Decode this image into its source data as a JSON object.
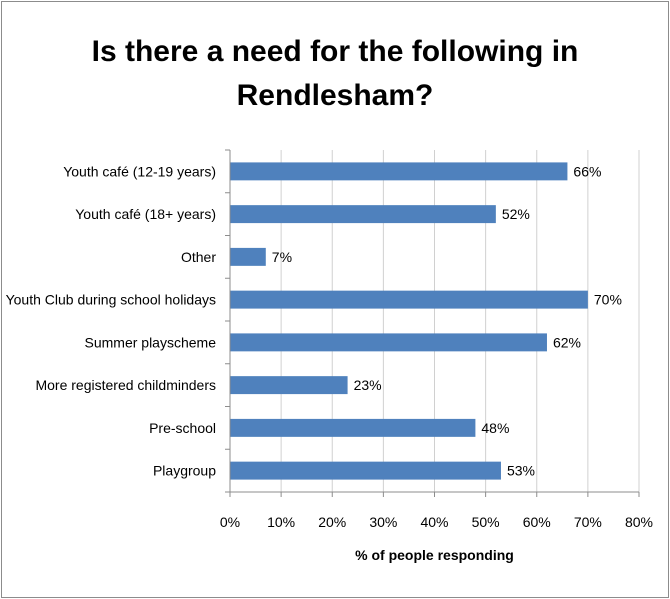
{
  "chart_data": {
    "type": "bar",
    "orientation": "horizontal",
    "title_lines": [
      "Is there a need for the following in",
      "Rendlesham?"
    ],
    "xlabel": "% of people responding",
    "ylabel": "",
    "categories": [
      "Youth café (12-19 years)",
      "Youth café (18+ years)",
      "Other",
      "Youth Club during school holidays",
      "Summer playscheme",
      "More registered childminders",
      "Pre-school",
      "Playgroup"
    ],
    "values": [
      66,
      52,
      7,
      70,
      62,
      23,
      48,
      53
    ],
    "data_labels": [
      "66%",
      "52%",
      "7%",
      "70%",
      "62%",
      "23%",
      "48%",
      "53%"
    ],
    "xlim": [
      0,
      80
    ],
    "xticks": [
      "0%",
      "10%",
      "20%",
      "30%",
      "40%",
      "50%",
      "60%",
      "70%",
      "80%"
    ],
    "grid": "vertical",
    "legend": "none",
    "bar_color": "#4f81bd",
    "grid_color": "#d0d0d0"
  }
}
